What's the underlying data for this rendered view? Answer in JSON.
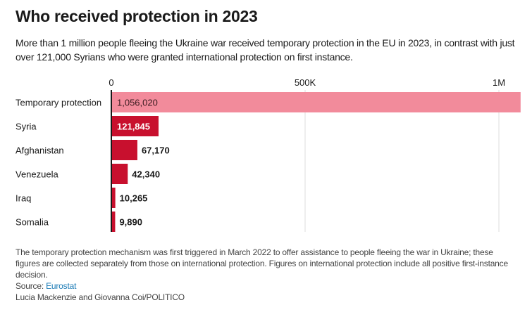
{
  "title": "Who received protection in 2023",
  "subtitle": "More than 1 million people fleeing the Ukraine war received temporary protection in the EU in 2023, in contrast with just over 121,000 Syrians who were granted international protection on first instance.",
  "chart_data": {
    "type": "bar",
    "orientation": "horizontal",
    "categories": [
      "Temporary protection",
      "Syria",
      "Afghanistan",
      "Venezuela",
      "Iraq",
      "Somalia"
    ],
    "values": [
      1056020,
      121845,
      67170,
      42340,
      10265,
      9890
    ],
    "value_labels": [
      "1,056,020",
      "121,845",
      "67,170",
      "42,340",
      "10,265",
      "9,890"
    ],
    "x_ticks": [
      0,
      500000,
      1000000
    ],
    "x_tick_labels": [
      "0",
      "500K",
      "1M"
    ],
    "xlim": [
      0,
      1060000
    ],
    "grid": true,
    "colors": {
      "highlight": "#f28b9b",
      "default": "#c8102e",
      "axis": "#1a1a1a",
      "grid": "#dddddd"
    }
  },
  "notes": {
    "text": "The temporary protection mechanism was first triggered in March 2022 to offer assistance to people fleeing the war in Ukraine; these figures are collected separately from those on international protection. Figures on international protection include all positive first-instance decision.",
    "source_label": "Source:",
    "source_link": "Eurostat",
    "credit": "Lucia Mackenzie and Giovanna Coi/POLITICO"
  }
}
